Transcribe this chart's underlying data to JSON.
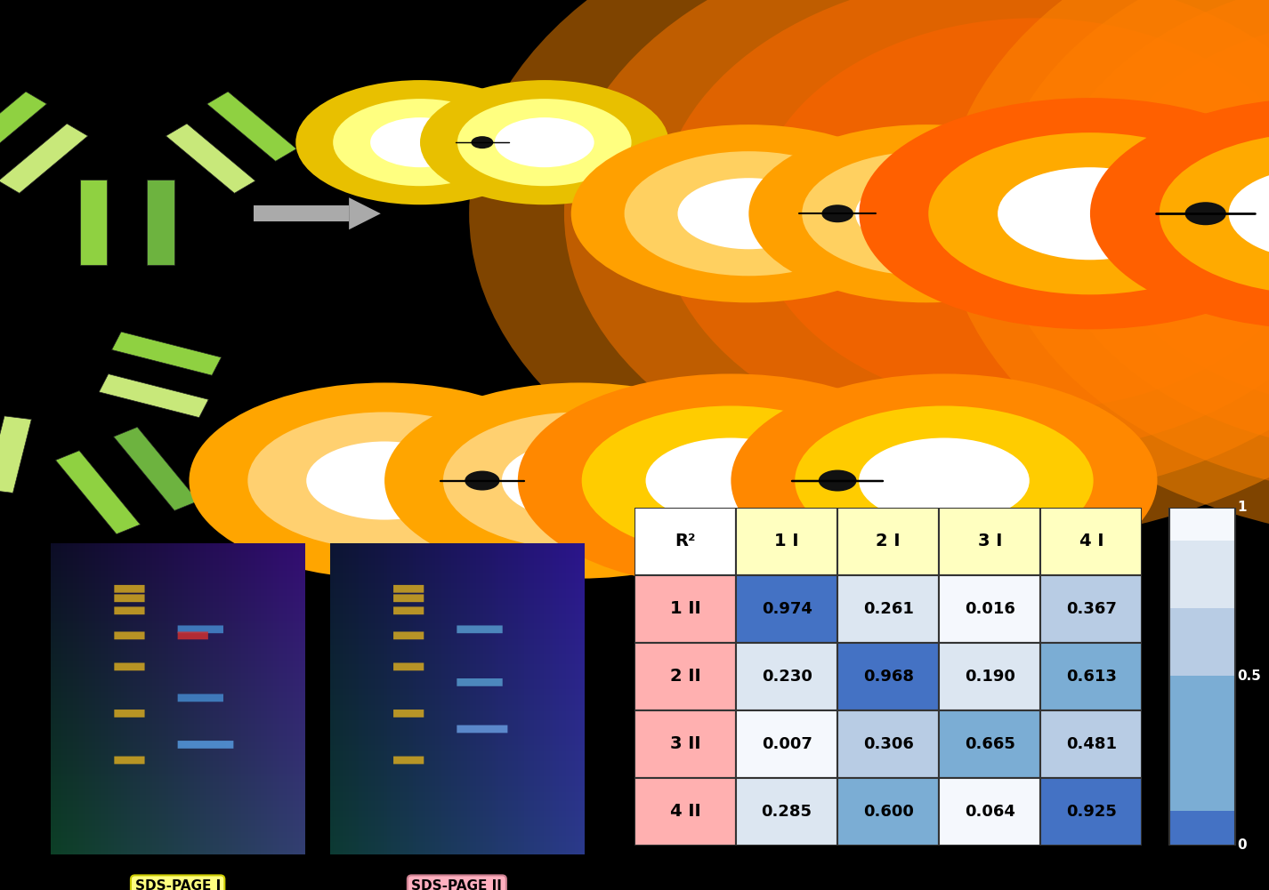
{
  "background_color": "#000000",
  "table_data": [
    [
      0.974,
      0.261,
      0.016,
      0.367
    ],
    [
      0.23,
      0.968,
      0.19,
      0.613
    ],
    [
      0.007,
      0.306,
      0.665,
      0.481
    ],
    [
      0.285,
      0.6,
      0.064,
      0.925
    ]
  ],
  "row_labels": [
    "1 II",
    "2 II",
    "3 II",
    "4 II"
  ],
  "col_labels": [
    "1 I",
    "2 I",
    "3 I",
    "4 I"
  ],
  "header_label": "R²",
  "sds_label1": "SDS-PAGE I",
  "sds_label2": "SDS-PAGE II",
  "colorbar_ticks": [
    0,
    0.5,
    1
  ],
  "header_bg": "#ffffc0",
  "row_header_bg": "#ffb0b0",
  "diagonal_bg": "#4472c4",
  "low_val_bg": "#dce6f1",
  "very_low_bg": "#f5f5ff",
  "white_bg": "#ffffff"
}
